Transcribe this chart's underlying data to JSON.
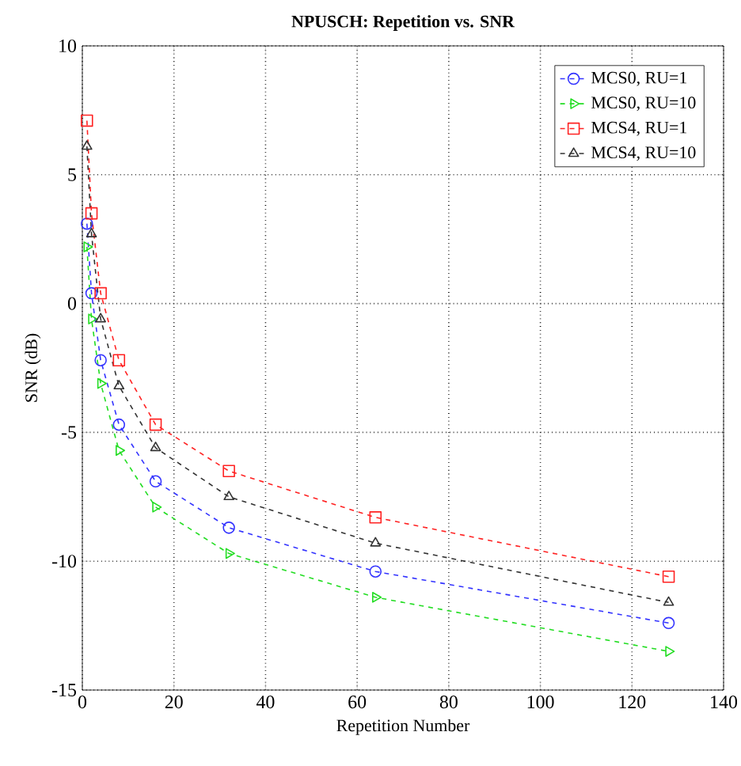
{
  "chart_data": {
    "type": "line",
    "title": "NPUSCH: Repetition vs. SNR",
    "xlabel": "Repetition Number",
    "ylabel": "SNR (dB)",
    "xlim": [
      0,
      140
    ],
    "ylim": [
      -15,
      10
    ],
    "xticks": [
      0,
      20,
      40,
      60,
      80,
      100,
      120,
      140
    ],
    "yticks": [
      -15,
      -10,
      -5,
      0,
      5,
      10
    ],
    "grid": true,
    "legend": "top right",
    "line_style": "dashed",
    "x": [
      1,
      2,
      4,
      8,
      16,
      32,
      64,
      128
    ],
    "series": [
      {
        "name": "MCS0, RU=1",
        "color": "#3333ff",
        "marker": "circle",
        "values": [
          3.1,
          0.4,
          -2.2,
          -4.7,
          -6.9,
          -8.7,
          -10.4,
          -12.4
        ]
      },
      {
        "name": "MCS0, RU=10",
        "color": "#22dd22",
        "marker": "triangle-right",
        "values": [
          2.2,
          -0.6,
          -3.1,
          -5.7,
          -7.9,
          -9.7,
          -11.4,
          -13.5
        ]
      },
      {
        "name": "MCS4, RU=1",
        "color": "#ff2222",
        "marker": "square",
        "values": [
          7.1,
          3.5,
          0.4,
          -2.2,
          -4.7,
          -6.5,
          -8.3,
          -10.6
        ]
      },
      {
        "name": "MCS4, RU=10",
        "color": "#333333",
        "marker": "triangle",
        "values": [
          6.1,
          2.7,
          -0.6,
          -3.2,
          -5.6,
          -7.5,
          -9.3,
          -11.6
        ]
      }
    ]
  }
}
